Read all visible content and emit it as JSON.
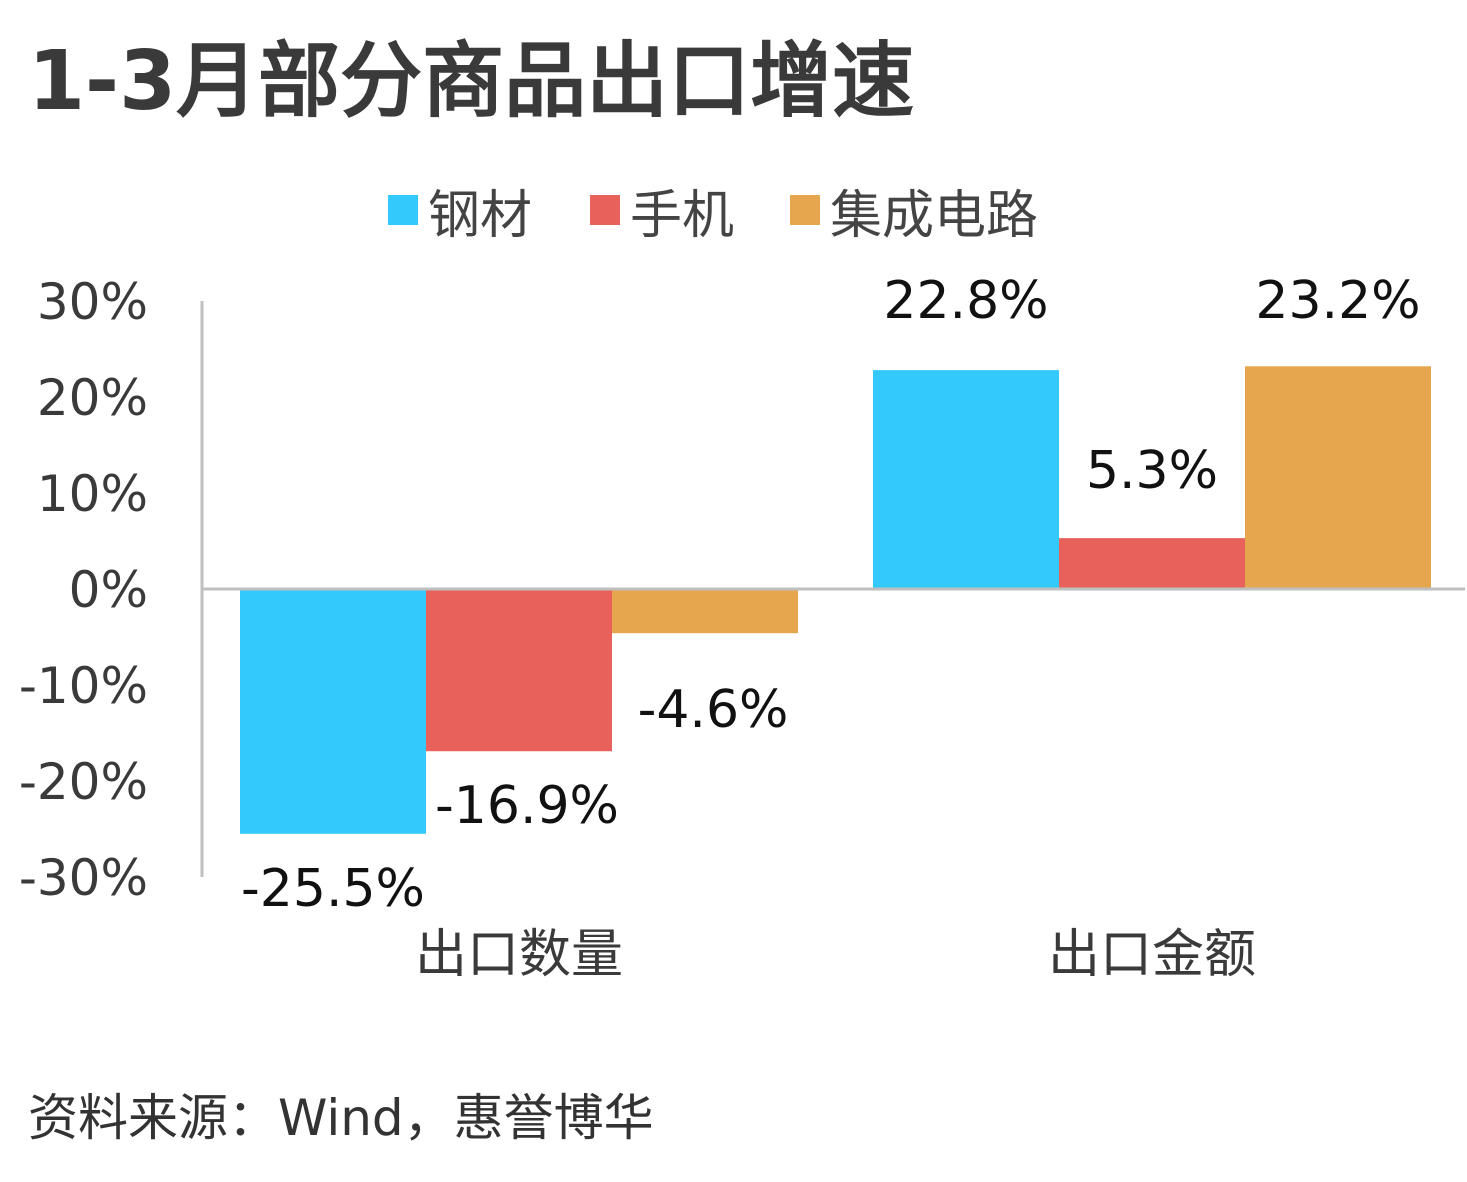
{
  "title": "1-3月部分商品出口增速",
  "source": "资料来源：Wind，惠誉博华",
  "chart_data": {
    "type": "bar",
    "categories": [
      "出口数量",
      "出口金额"
    ],
    "series": [
      {
        "name": "钢材",
        "values": [
          -25.5,
          22.8
        ],
        "labels": [
          "-25.5%",
          "22.8%"
        ],
        "color": "#33C9FC"
      },
      {
        "name": "手机",
        "values": [
          -16.9,
          5.3
        ],
        "labels": [
          "-16.9%",
          "5.3%"
        ],
        "color": "#E8625B"
      },
      {
        "name": "集成电路",
        "values": [
          -4.6,
          23.2
        ],
        "labels": [
          "-4.6%",
          "23.2%"
        ],
        "color": "#E5A64E"
      }
    ],
    "ylim": [
      -30,
      30
    ],
    "yticks": [
      30,
      20,
      10,
      0,
      -10,
      -20,
      -30
    ],
    "ytick_labels": [
      "30%",
      "20%",
      "10%",
      "0%",
      "-10%",
      "-20%",
      "-30%"
    ],
    "legend_position": "top",
    "grid": false
  }
}
